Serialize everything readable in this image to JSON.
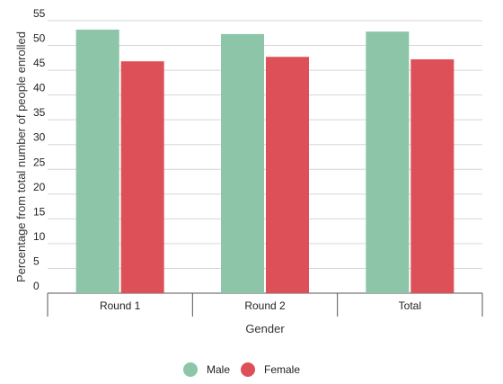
{
  "chart_data": {
    "type": "bar",
    "categories": [
      "Round 1",
      "Round 2",
      "Total"
    ],
    "series": [
      {
        "name": "Male",
        "values": [
          53.2,
          52.3,
          52.8
        ],
        "color": "#8cc5a8"
      },
      {
        "name": "Female",
        "values": [
          46.8,
          47.7,
          47.2
        ],
        "color": "#de5058"
      }
    ],
    "y_ticks": [
      "0",
      "5",
      "10",
      "15",
      "20",
      "25",
      "30",
      "35",
      "40",
      "45",
      "50",
      "55"
    ],
    "ylim": [
      0,
      55
    ],
    "xlabel": "Gender",
    "ylabel": "Percentage from total number of people enrolled",
    "legend_position": "bottom-center",
    "grid": true
  }
}
